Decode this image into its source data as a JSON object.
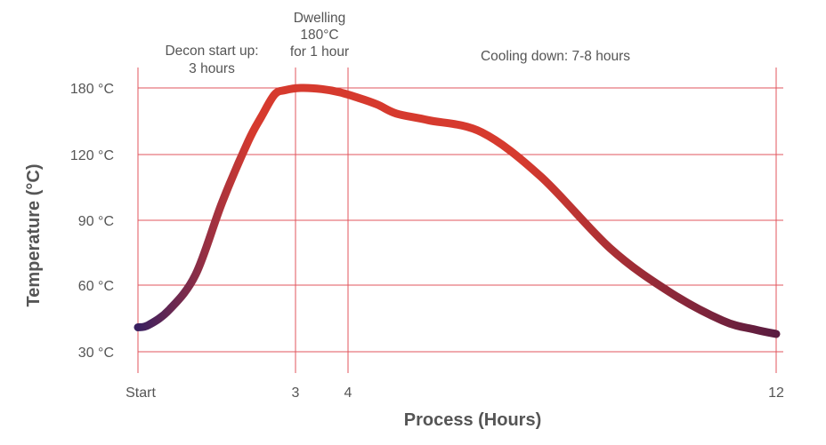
{
  "chart_data": {
    "type": "line",
    "title": "",
    "xlabel": "Process (Hours)",
    "ylabel": "Temperature (°C)",
    "x_ticks": [
      {
        "value": 0,
        "label": "Start"
      },
      {
        "value": 3,
        "label": "3"
      },
      {
        "value": 4,
        "label": "4"
      },
      {
        "value": 12,
        "label": "12"
      }
    ],
    "y_ticks": [
      {
        "value": 30,
        "label": "30 °C"
      },
      {
        "value": 60,
        "label": "60 °C"
      },
      {
        "value": 90,
        "label": "90 °C"
      },
      {
        "value": 120,
        "label": "120 °C"
      },
      {
        "value": 180,
        "label": "180 °C"
      }
    ],
    "annotations": [
      {
        "lines": [
          "Decon start up:",
          "3 hours"
        ]
      },
      {
        "lines": [
          "Dwelling",
          "180°C",
          "for 1 hour"
        ]
      },
      {
        "lines": [
          "Cooling down: 7-8 hours"
        ]
      }
    ],
    "grid": true,
    "series": [
      {
        "values": [
          {
            "x": 0.0,
            "y": 41
          },
          {
            "x": 0.2,
            "y": 42
          },
          {
            "x": 0.6,
            "y": 49
          },
          {
            "x": 1.1,
            "y": 65
          },
          {
            "x": 1.6,
            "y": 98
          },
          {
            "x": 2.1,
            "y": 132
          },
          {
            "x": 2.35,
            "y": 154
          },
          {
            "x": 2.6,
            "y": 174
          },
          {
            "x": 2.8,
            "y": 178
          },
          {
            "x": 3.1,
            "y": 180
          },
          {
            "x": 3.5,
            "y": 179
          },
          {
            "x": 3.85,
            "y": 176
          },
          {
            "x": 4.2,
            "y": 171
          },
          {
            "x": 4.55,
            "y": 165
          },
          {
            "x": 4.9,
            "y": 157
          },
          {
            "x": 5.5,
            "y": 151
          },
          {
            "x": 6.5,
            "y": 140
          },
          {
            "x": 7.6,
            "y": 110
          },
          {
            "x": 8.9,
            "y": 77
          },
          {
            "x": 10.0,
            "y": 57
          },
          {
            "x": 11.0,
            "y": 44
          },
          {
            "x": 11.6,
            "y": 40
          },
          {
            "x": 12.0,
            "y": 38
          }
        ]
      }
    ],
    "colors": {
      "curve_start": "#3a2060",
      "curve_mid": "#d63a2e",
      "curve_end": "#5a1c40",
      "grid": "#e0555c",
      "axis_text": "#555555"
    }
  }
}
